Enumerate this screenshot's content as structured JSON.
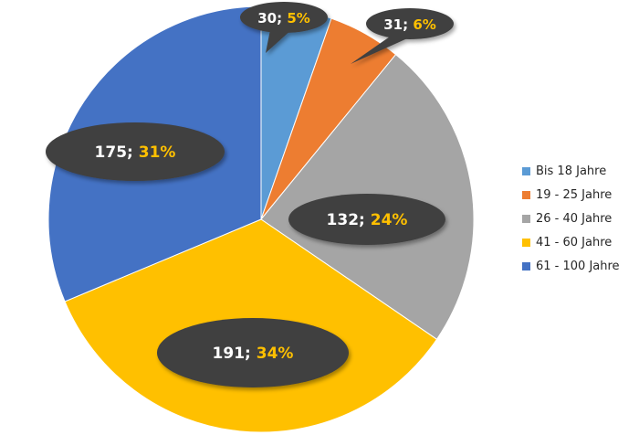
{
  "chart_data": {
    "type": "pie",
    "start_angle_deg": 0,
    "direction": "clockwise",
    "series": [
      {
        "category": "Bis 18 Jahre",
        "value": 30,
        "percent_label": "5%",
        "color": "#5B9BD5"
      },
      {
        "category": "19 - 25 Jahre",
        "value": 31,
        "percent_label": "6%",
        "color": "#ED7D31"
      },
      {
        "category": "26 - 40 Jahre",
        "value": 132,
        "percent_label": "24%",
        "color": "#A5A5A5"
      },
      {
        "category": "41 - 60 Jahre",
        "value": 191,
        "percent_label": "34%",
        "color": "#FFC000"
      },
      {
        "category": "61 - 100 Jahre",
        "value": 175,
        "percent_label": "31%",
        "color": "#4472C4"
      }
    ],
    "data_label_separator": "; ",
    "data_label_style": {
      "bubble_color": "#404040",
      "value_color": "#FFFFFF",
      "percent_color": "#FFC000"
    },
    "legend_position": "right"
  }
}
